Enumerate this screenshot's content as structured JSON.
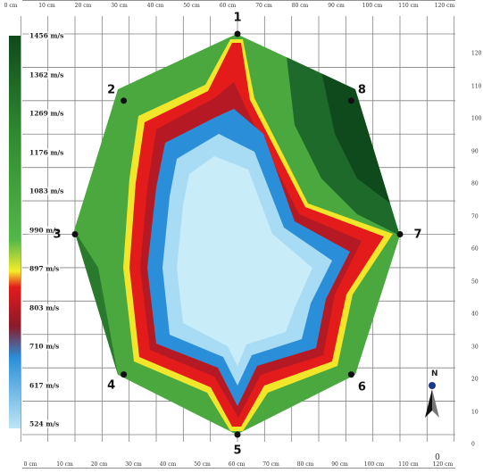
{
  "diagram": {
    "x_axis_top": [
      "0 cm",
      "10 cm",
      "20 cm",
      "30 cm",
      "40 cm",
      "50 cm",
      "60 cm",
      "70 cm",
      "80 cm",
      "90 cm",
      "100 cm",
      "110 cm",
      "120 cm"
    ],
    "x_axis_bottom": [
      "0 cm",
      "10 cm",
      "20 cm",
      "30 cm",
      "40 cm",
      "50 cm",
      "60 cm",
      "70 cm",
      "80 cm",
      "90 cm",
      "100 cm",
      "110 cm",
      "120 cm"
    ],
    "y_axis_right": [
      "120",
      "110",
      "100",
      "90",
      "80",
      "70",
      "60",
      "50",
      "40",
      "30",
      "20",
      "10",
      "0"
    ],
    "legend": {
      "labels": [
        "1456 m/s",
        "1362 m/s",
        "1269 m/s",
        "1176 m/s",
        "1083 m/s",
        "990 m/s",
        "897 m/s",
        "803 m/s",
        "710 m/s",
        "617 m/s",
        "524 m/s"
      ],
      "colors": [
        "#0f4a1c",
        "#2f8a2f",
        "#52b848",
        "#f6ec2a",
        "#e31b1b",
        "#2a8fd8",
        "#bfe6f6"
      ]
    },
    "sensors": [
      {
        "id": "1",
        "x_cm": 60,
        "y_cm": 120
      },
      {
        "id": "2",
        "x_cm": 18,
        "y_cm": 100
      },
      {
        "id": "3",
        "x_cm": 0,
        "y_cm": 60
      },
      {
        "id": "4",
        "x_cm": 18,
        "y_cm": 18
      },
      {
        "id": "5",
        "x_cm": 60,
        "y_cm": 0
      },
      {
        "id": "6",
        "x_cm": 102,
        "y_cm": 18
      },
      {
        "id": "7",
        "x_cm": 120,
        "y_cm": 60
      },
      {
        "id": "8",
        "x_cm": 102,
        "y_cm": 100
      }
    ],
    "compass_label": "N",
    "bottom_extra": "0"
  }
}
